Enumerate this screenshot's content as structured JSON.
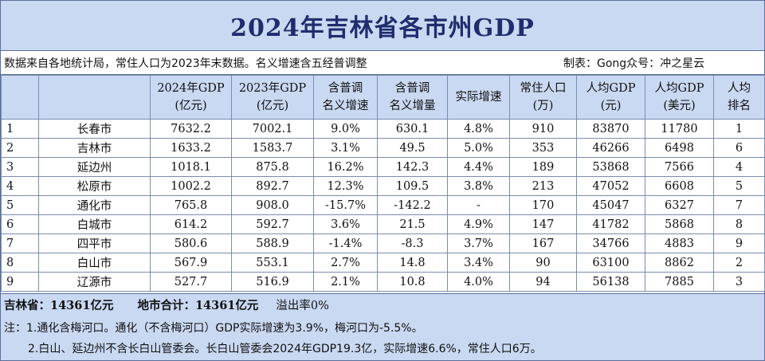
{
  "title": "2024年吉林省各市州GDP",
  "info": {
    "source": "数据来自各地统计局，常住人口为2023年末数据。名义增速含五经普调整",
    "maker": "制表：Gong众号：冲之星云"
  },
  "headers": [
    "",
    "",
    "2024年GDP\n(亿元)",
    "2023年GDP\n(亿元)",
    "含普调\n名义增速",
    "含普调\n名义增量",
    "实际增速",
    "常住人口\n(万)",
    "人均GDP\n(元)",
    "人均GDP\n(美元)",
    "人均\n排名"
  ],
  "rows": [
    {
      "rank": "1",
      "city": "长春市",
      "gdp2024": "7632.2",
      "gdp2023": "7002.1",
      "nominal_growth": "9.0%",
      "nominal_increase": "630.1",
      "real_growth": "4.8%",
      "population": "910",
      "gdp_pc_cny": "83870",
      "gdp_pc_usd": "11780",
      "pc_rank": "1"
    },
    {
      "rank": "2",
      "city": "吉林市",
      "gdp2024": "1633.2",
      "gdp2023": "1583.7",
      "nominal_growth": "3.1%",
      "nominal_increase": "49.5",
      "real_growth": "5.0%",
      "population": "353",
      "gdp_pc_cny": "46266",
      "gdp_pc_usd": "6498",
      "pc_rank": "6"
    },
    {
      "rank": "3",
      "city": "延边州",
      "gdp2024": "1018.1",
      "gdp2023": "875.8",
      "nominal_growth": "16.2%",
      "nominal_increase": "142.3",
      "real_growth": "4.4%",
      "population": "189",
      "gdp_pc_cny": "53868",
      "gdp_pc_usd": "7566",
      "pc_rank": "4"
    },
    {
      "rank": "4",
      "city": "松原市",
      "gdp2024": "1002.2",
      "gdp2023": "892.7",
      "nominal_growth": "12.3%",
      "nominal_increase": "109.5",
      "real_growth": "3.8%",
      "population": "213",
      "gdp_pc_cny": "47052",
      "gdp_pc_usd": "6608",
      "pc_rank": "5"
    },
    {
      "rank": "5",
      "city": "通化市",
      "gdp2024": "765.8",
      "gdp2023": "908.0",
      "nominal_growth": "-15.7%",
      "nominal_increase": "-142.2",
      "real_growth": "-",
      "population": "170",
      "gdp_pc_cny": "45047",
      "gdp_pc_usd": "6327",
      "pc_rank": "7"
    },
    {
      "rank": "6",
      "city": "白城市",
      "gdp2024": "614.2",
      "gdp2023": "592.7",
      "nominal_growth": "3.6%",
      "nominal_increase": "21.5",
      "real_growth": "4.9%",
      "population": "147",
      "gdp_pc_cny": "41782",
      "gdp_pc_usd": "5868",
      "pc_rank": "8"
    },
    {
      "rank": "7",
      "city": "四平市",
      "gdp2024": "580.6",
      "gdp2023": "588.9",
      "nominal_growth": "-1.4%",
      "nominal_increase": "-8.3",
      "real_growth": "3.7%",
      "population": "167",
      "gdp_pc_cny": "34766",
      "gdp_pc_usd": "4883",
      "pc_rank": "9"
    },
    {
      "rank": "8",
      "city": "白山市",
      "gdp2024": "567.9",
      "gdp2023": "553.1",
      "nominal_growth": "2.7%",
      "nominal_increase": "14.8",
      "real_growth": "3.4%",
      "population": "90",
      "gdp_pc_cny": "63100",
      "gdp_pc_usd": "8862",
      "pc_rank": "2"
    },
    {
      "rank": "9",
      "city": "辽源市",
      "gdp2024": "527.7",
      "gdp2023": "516.9",
      "nominal_growth": "2.1%",
      "nominal_increase": "10.8",
      "real_growth": "4.0%",
      "population": "94",
      "gdp_pc_cny": "56138",
      "gdp_pc_usd": "7885",
      "pc_rank": "3"
    }
  ],
  "summary": {
    "province": "吉林省：14361亿元",
    "cities_total": "地市合计：14361亿元",
    "overflow_rate": "溢出率0%"
  },
  "notes": {
    "note1": "注：1.通化含梅河口。通化（不含梅河口）GDP实际增速为3.9%，梅河口为-5.5%。",
    "note2": "2.白山、延边州不含长白山管委会。长白山管委会2024年GDP19.3亿，实际增速6.6%，常住人口6万。"
  },
  "colors": {
    "header_bg": "#c9d9f2",
    "title_color": "#1f2d6e",
    "border": "#7a8cb0"
  }
}
